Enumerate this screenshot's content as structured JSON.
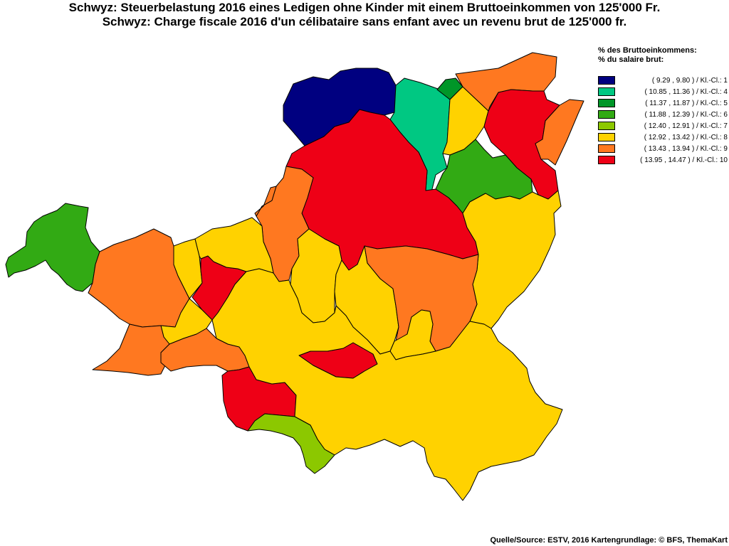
{
  "title_de": "Schwyz: Steuerbelastung 2016 eines Ledigen ohne Kinder mit einem Bruttoeinkommen von 125'000 Fr.",
  "title_fr": "Schwyz: Charge fiscale 2016 d'un célibataire sans enfant avec un revenu brut de 125'000 fr.",
  "legend": {
    "heading_de": "% des Bruttoeinkommens:",
    "heading_fr": "% du salaire brut:",
    "classes": [
      {
        "label": "( 9.29 , 9.80 ) / Kl.-Cl.: 1",
        "color": "#000080"
      },
      {
        "label": "( 10.85 , 11.36 ) / Kl.-Cl.: 4",
        "color": "#00C882"
      },
      {
        "label": "( 11.37 , 11.87 ) / Kl.-Cl.: 5",
        "color": "#009628"
      },
      {
        "label": "( 11.88 , 12.39 ) / Kl.-Cl.: 6",
        "color": "#32AA14"
      },
      {
        "label": "( 12.40 , 12.91 ) / Kl.-Cl.: 7",
        "color": "#8CC800"
      },
      {
        "label": "( 12.92 , 13.42 ) / Kl.-Cl.: 8",
        "color": "#FFD200"
      },
      {
        "label": "( 13.43 , 13.94 ) / Kl.-Cl.: 9",
        "color": "#FF7820"
      },
      {
        "label": "( 13.95 , 14.47 ) / Kl.-Cl.: 10",
        "color": "#EE0016"
      }
    ]
  },
  "source": "Quelle/Source: ESTV, 2016 Kartengrundlage: © BFS, ThemaKart",
  "map": {
    "stroke": "#000000",
    "regions": [
      {
        "name": "region-north-west-dark-blue",
        "class": 1
      },
      {
        "name": "region-north-teal",
        "class": 4
      },
      {
        "name": "region-north-small-green",
        "class": 5
      },
      {
        "name": "region-north-yellow",
        "class": 8
      },
      {
        "name": "region-north-orange",
        "class": 9
      },
      {
        "name": "region-north-east-red",
        "class": 10
      },
      {
        "name": "region-east-strip-orange",
        "class": 9
      },
      {
        "name": "region-north-east-green",
        "class": 6
      },
      {
        "name": "region-central-red",
        "class": 10
      },
      {
        "name": "region-east-yellow",
        "class": 8
      },
      {
        "name": "region-west-orange-strip",
        "class": 9
      },
      {
        "name": "region-west-green",
        "class": 6
      },
      {
        "name": "region-west-orange",
        "class": 9
      },
      {
        "name": "region-west-yellow-small",
        "class": 8
      },
      {
        "name": "region-west-red",
        "class": 10
      },
      {
        "name": "region-west-central-yellow",
        "class": 8
      },
      {
        "name": "region-center-yellow-a",
        "class": 8
      },
      {
        "name": "region-center-yellow-b",
        "class": 8
      },
      {
        "name": "region-center-orange",
        "class": 9
      },
      {
        "name": "region-center-yellow-c",
        "class": 8
      },
      {
        "name": "region-east-orange",
        "class": 9
      },
      {
        "name": "region-south-west-yellow",
        "class": 8
      },
      {
        "name": "region-south-west-orange",
        "class": 9
      },
      {
        "name": "region-south-orange-small",
        "class": 9
      },
      {
        "name": "region-south-red",
        "class": 10
      },
      {
        "name": "region-south-center-red",
        "class": 10
      },
      {
        "name": "region-south-yellow-large",
        "class": 8
      },
      {
        "name": "region-south-lime",
        "class": 7
      }
    ]
  }
}
